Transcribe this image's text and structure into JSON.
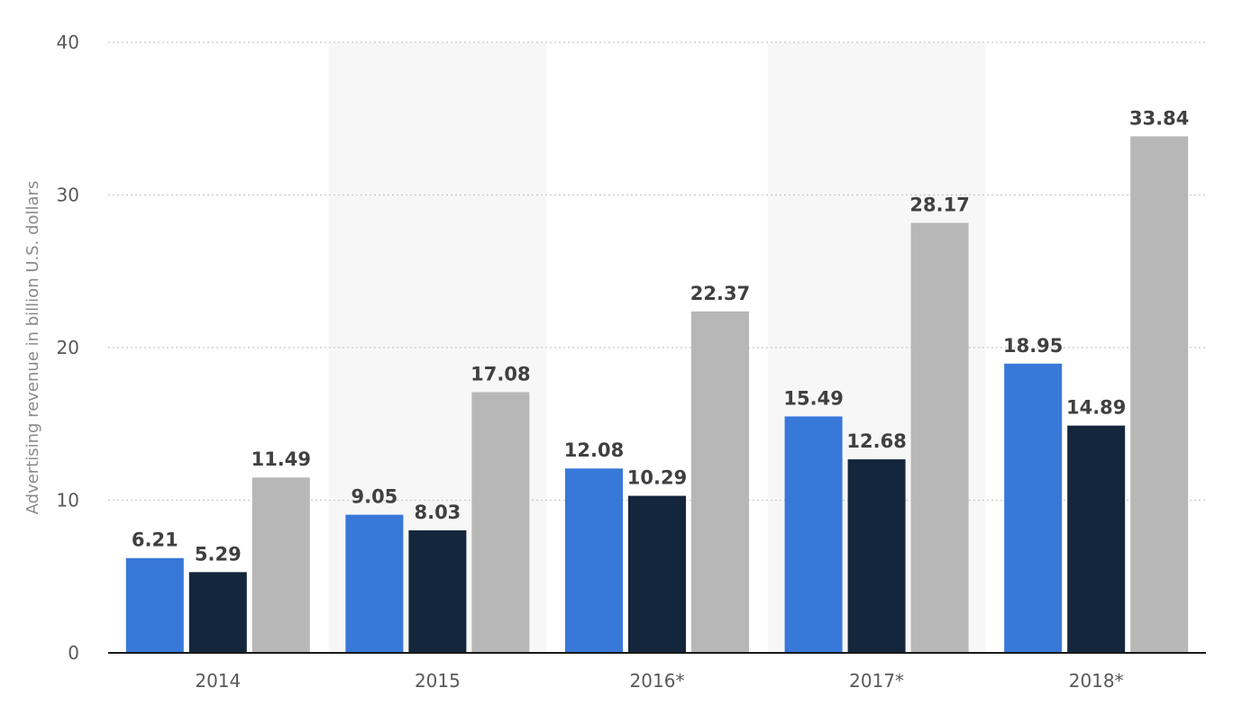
{
  "chart_data": {
    "type": "bar",
    "title": "",
    "xlabel": "",
    "ylabel": "Advertising revenue in billion U.S. dollars",
    "ylim": [
      0,
      40
    ],
    "yticks": [
      0,
      10,
      20,
      30,
      40
    ],
    "grid": true,
    "legend": "none",
    "categories": [
      "2014",
      "2015",
      "2016*",
      "2017*",
      "2018*"
    ],
    "series": [
      {
        "color": "#3878d8",
        "values": [
          6.21,
          9.05,
          12.08,
          15.49,
          18.95
        ]
      },
      {
        "color": "#14263b",
        "values": [
          5.29,
          8.03,
          10.29,
          12.68,
          14.89
        ]
      },
      {
        "color": "#b7b7b7",
        "values": [
          11.49,
          17.08,
          22.37,
          28.17,
          33.84
        ]
      }
    ],
    "value_labels": [
      [
        "6.21",
        "9.05",
        "12.08",
        "15.49",
        "18.95"
      ],
      [
        "5.29",
        "8.03",
        "10.29",
        "12.68",
        "14.89"
      ],
      [
        "11.49",
        "17.08",
        "22.37",
        "28.17",
        "33.84"
      ]
    ],
    "band_color": "#f7f7f7"
  }
}
